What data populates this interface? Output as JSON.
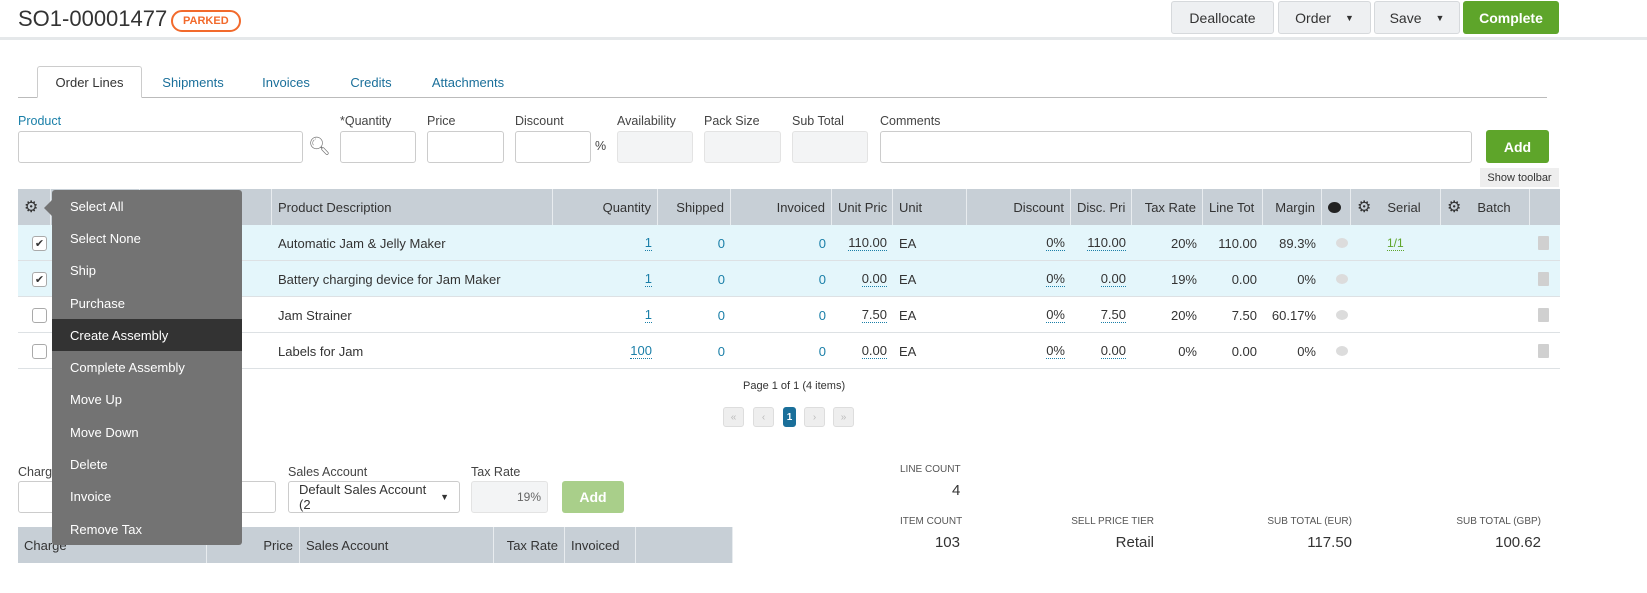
{
  "header": {
    "order_number": "SO1-00001477",
    "status": "PARKED",
    "buttons": {
      "deallocate": "Deallocate",
      "order": "Order",
      "save": "Save",
      "complete": "Complete"
    }
  },
  "tabs": [
    "Order Lines",
    "Shipments",
    "Invoices",
    "Credits",
    "Attachments"
  ],
  "entry": {
    "product": "Product",
    "quantity": "*Quantity",
    "price": "Price",
    "discount": "Discount",
    "percent": "%",
    "availability": "Availability",
    "pack_size": "Pack Size",
    "sub_total": "Sub Total",
    "comments": "Comments",
    "add": "Add",
    "show_toolbar": "Show toolbar"
  },
  "table": {
    "columns": [
      "Product Description",
      "Quantity",
      "Shipped",
      "Invoiced",
      "Unit Pric",
      "Unit",
      "Discount",
      "Disc. Pri",
      "Tax Rate",
      "Line Tot",
      "Margin",
      "Serial",
      "Batch"
    ],
    "rows": [
      {
        "checked": true,
        "desc": "Automatic Jam & Jelly Maker",
        "qty": "1",
        "shipped": "0",
        "invoiced": "0",
        "unit_price": "110.00",
        "unit": "EA",
        "discount": "0%",
        "disc_price": "110.00",
        "tax": "20%",
        "line_total": "110.00",
        "margin": "89.3%",
        "serial": "1/1"
      },
      {
        "checked": true,
        "desc": "Battery charging device for Jam Maker",
        "qty": "1",
        "shipped": "0",
        "invoiced": "0",
        "unit_price": "0.00",
        "unit": "EA",
        "discount": "0%",
        "disc_price": "0.00",
        "tax": "19%",
        "line_total": "0.00",
        "margin": "0%",
        "serial": ""
      },
      {
        "checked": false,
        "desc": "Jam Strainer",
        "qty": "1",
        "shipped": "0",
        "invoiced": "0",
        "unit_price": "7.50",
        "unit": "EA",
        "discount": "0%",
        "disc_price": "7.50",
        "tax": "20%",
        "line_total": "7.50",
        "margin": "60.17%",
        "serial": ""
      },
      {
        "checked": false,
        "desc": "Labels for Jam",
        "qty": "100",
        "shipped": "0",
        "invoiced": "0",
        "unit_price": "0.00",
        "unit": "EA",
        "discount": "0%",
        "disc_price": "0.00",
        "tax": "0%",
        "line_total": "0.00",
        "margin": "0%",
        "serial": ""
      }
    ]
  },
  "pagination": {
    "summary": "Page 1 of 1 (4 items)",
    "current": "1",
    "first": "«",
    "prev": "‹",
    "next": "›",
    "last": "»"
  },
  "menu": {
    "items": [
      "Select All",
      "Select None",
      "Ship",
      "Purchase",
      "Create Assembly",
      "Complete Assembly",
      "Move Up",
      "Move Down",
      "Delete",
      "Invoice",
      "Remove Tax"
    ],
    "highlighted": "Create Assembly"
  },
  "charges": {
    "charge_label": "Charg",
    "sales_account_label": "Sales Account",
    "sales_account_value": "Default Sales Account (2",
    "tax_rate_label": "Tax Rate",
    "tax_rate_value": "19%",
    "add": "Add",
    "columns": [
      "Charge",
      "Price",
      "Sales Account",
      "Tax Rate",
      "Invoiced"
    ]
  },
  "summary": {
    "line_count_label": "LINE COUNT",
    "line_count": "4",
    "item_count_label": "ITEM COUNT",
    "item_count": "103",
    "tier_label": "SELL PRICE TIER",
    "tier": "Retail",
    "sub_eur_label": "SUB TOTAL (EUR)",
    "sub_eur": "117.50",
    "sub_gbp_label": "SUB TOTAL (GBP)",
    "sub_gbp": "100.62"
  },
  "colors": {
    "accent": "#5ea52a",
    "status": "#f26a2c",
    "link": "#1a7fa8"
  }
}
